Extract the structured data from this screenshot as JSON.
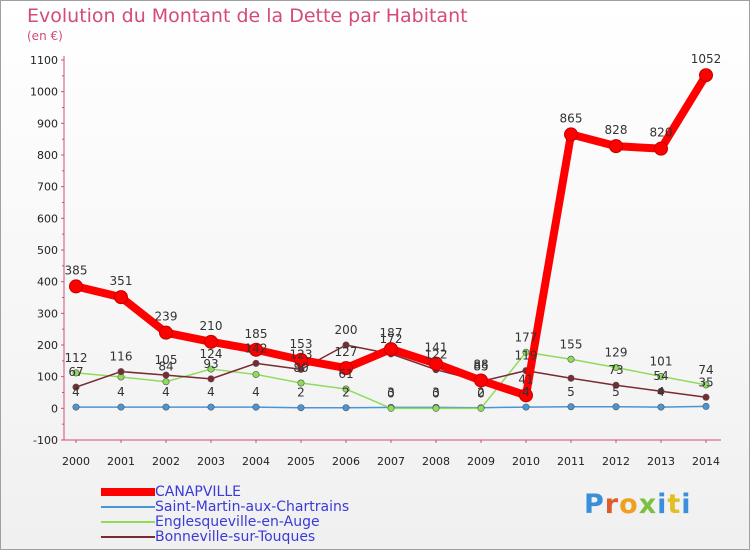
{
  "title": "Evolution du Montant de la Dette par Habitant",
  "unit": "(en €)",
  "logo": "Proxiti",
  "chart_data": {
    "type": "line",
    "x": [
      "2000",
      "2001",
      "2002",
      "2003",
      "2004",
      "2005",
      "2006",
      "2007",
      "2008",
      "2009",
      "2010",
      "2011",
      "2012",
      "2013",
      "2014"
    ],
    "ylim": [
      -100,
      1100
    ],
    "yticks": [
      -100,
      0,
      100,
      200,
      300,
      400,
      500,
      600,
      700,
      800,
      900,
      1000,
      1100
    ],
    "grid": false,
    "legend": "bottom-left",
    "series": [
      {
        "name": "CANAPVILLE",
        "color": "#ff0000",
        "values": [
          385,
          351,
          239,
          210,
          185,
          153,
          127,
          187,
          141,
          88,
          41,
          865,
          828,
          820,
          1052
        ],
        "labels": [
          "385",
          "351",
          "239",
          "210",
          "185",
          "153",
          "127",
          "187",
          "141",
          "88",
          "41",
          "865",
          "828",
          "820",
          "1052"
        ]
      },
      {
        "name": "Saint-Martin-aux-Chartrains",
        "color": "#4a95d6",
        "values": [
          4,
          4,
          4,
          4,
          4,
          2,
          2,
          3,
          3,
          2,
          4,
          5,
          5,
          4,
          6
        ],
        "labels": [
          "4",
          "4",
          "4",
          "4",
          "4",
          "2",
          "2",
          "3",
          "3",
          "2",
          "4",
          "5",
          "5",
          "4",
          ""
        ]
      },
      {
        "name": "Englesqueville-en-Auge",
        "color": "#8edc5a",
        "values": [
          112,
          99,
          84,
          124,
          107,
          80,
          61,
          0,
          0,
          0,
          177,
          155,
          129,
          101,
          74
        ],
        "labels": [
          "112",
          "",
          "84",
          "124",
          "",
          "80",
          "61",
          "0",
          "0",
          "0",
          "177",
          "155",
          "129",
          "101",
          "74"
        ]
      },
      {
        "name": "Bonneville-sur-Touques",
        "color": "#7a2a32",
        "values": [
          67,
          116,
          105,
          93,
          142,
          123,
          200,
          172,
          122,
          85,
          119,
          95,
          73,
          54,
          35
        ],
        "labels": [
          "67",
          "116",
          "105",
          "93",
          "142",
          "123",
          "200",
          "172",
          "122",
          "85",
          "119",
          "",
          "73",
          "54",
          "35"
        ]
      }
    ]
  }
}
